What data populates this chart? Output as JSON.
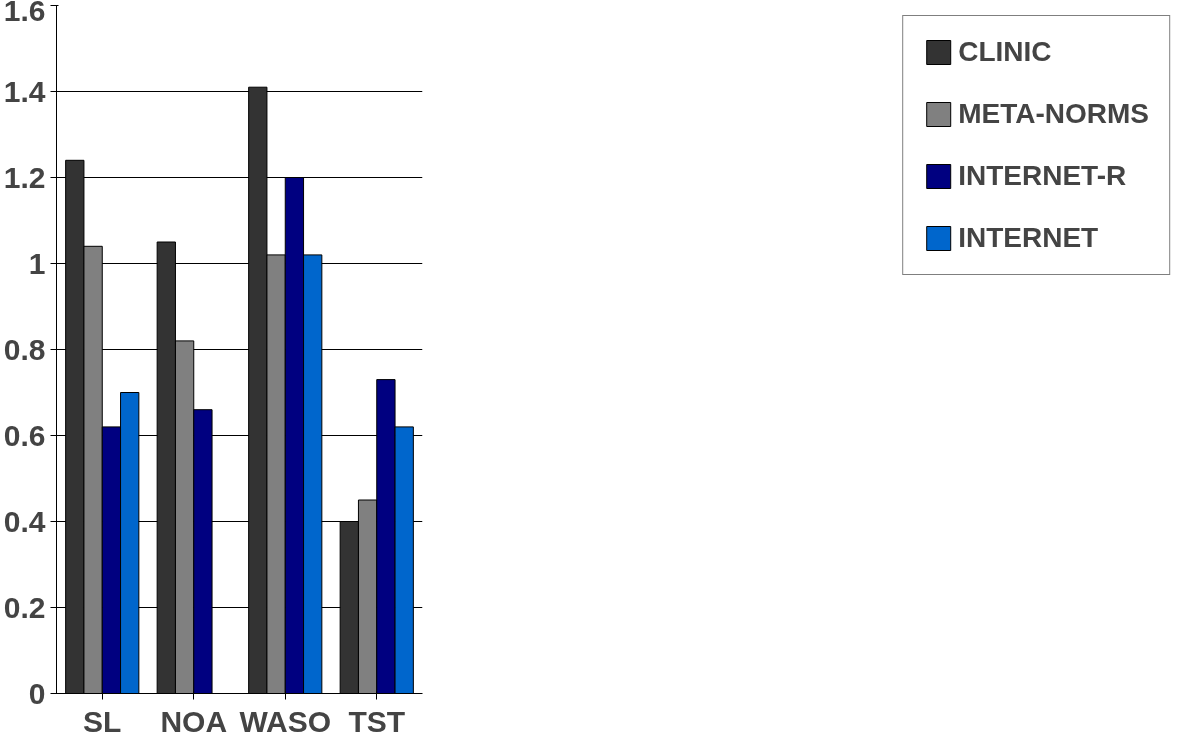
{
  "chart_data": {
    "type": "bar",
    "categories": [
      "SL",
      "NOA",
      "WASO",
      "TST"
    ],
    "series": [
      {
        "name": "CLINIC",
        "color": "#333333",
        "values": [
          1.24,
          1.05,
          1.41,
          0.4
        ]
      },
      {
        "name": "META-NORMS",
        "color": "#808080",
        "values": [
          1.04,
          0.82,
          1.02,
          0.45
        ]
      },
      {
        "name": "INTERNET-R",
        "color": "#000080",
        "values": [
          0.62,
          0.66,
          1.2,
          0.73
        ]
      },
      {
        "name": "INTERNET",
        "color": "#0066cc",
        "values": [
          0.7,
          null,
          1.02,
          0.62
        ]
      }
    ],
    "ylim": [
      0,
      1.6
    ],
    "yticks": [
      0,
      0.2,
      0.4,
      0.6,
      0.8,
      1,
      1.2,
      1.4,
      1.6
    ],
    "grid": "y",
    "legend": "right"
  }
}
